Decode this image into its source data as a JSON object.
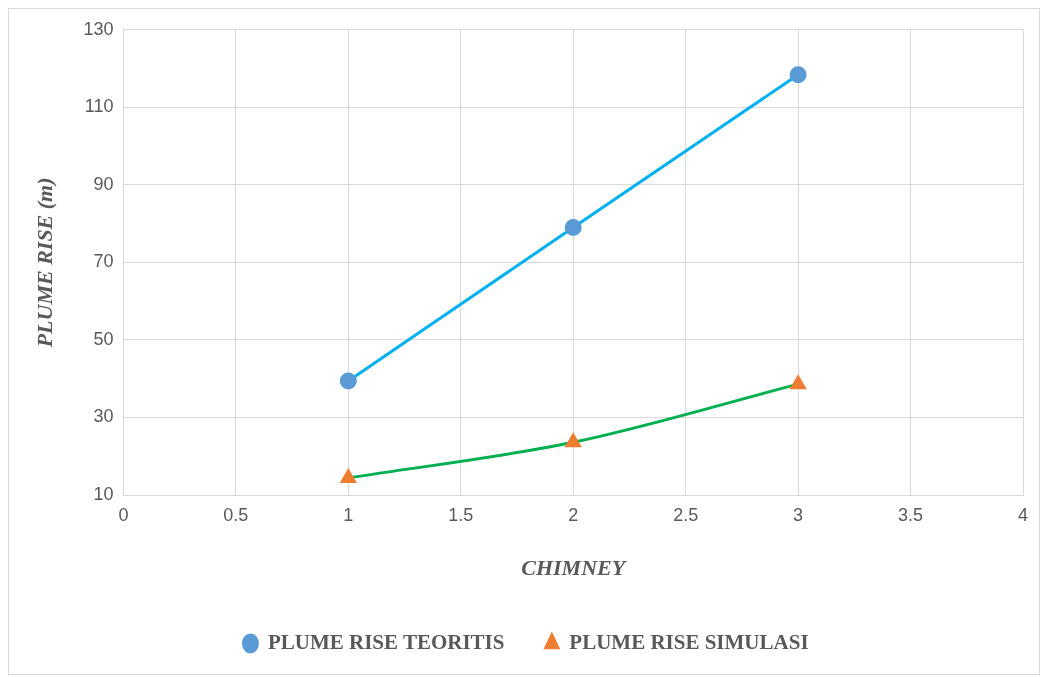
{
  "chart_data": {
    "type": "line",
    "xlabel": "CHIMNEY",
    "ylabel": "PLUME RISE (m)",
    "series": [
      {
        "name": "PLUME RISE TEORITIS",
        "color": "#00b0f0",
        "colors": [
          "#5b9bd5",
          "#5b9bd5",
          "#5b9bd5"
        ],
        "marker": "circle",
        "x": [
          1,
          2,
          3
        ],
        "values": [
          39.4,
          79,
          118.4
        ]
      },
      {
        "name": "PLUME RISE SIMULASI",
        "color": "#00b050",
        "colors": [
          "#ed7d31",
          "#ed7d31",
          "#ed7d31"
        ],
        "marker": "triangle",
        "x": [
          1,
          2,
          3
        ],
        "values": [
          14.4,
          23.6,
          38.6
        ]
      }
    ],
    "xlim": [
      0,
      4
    ],
    "xticks": [
      0,
      0.5,
      1,
      1.5,
      2,
      2.5,
      3,
      3.5,
      4
    ],
    "ylim": [
      10,
      130
    ],
    "yticks": [
      10,
      30,
      50,
      70,
      90,
      110,
      130
    ],
    "grid": true,
    "legend": "bottom",
    "line_style": "solid"
  }
}
